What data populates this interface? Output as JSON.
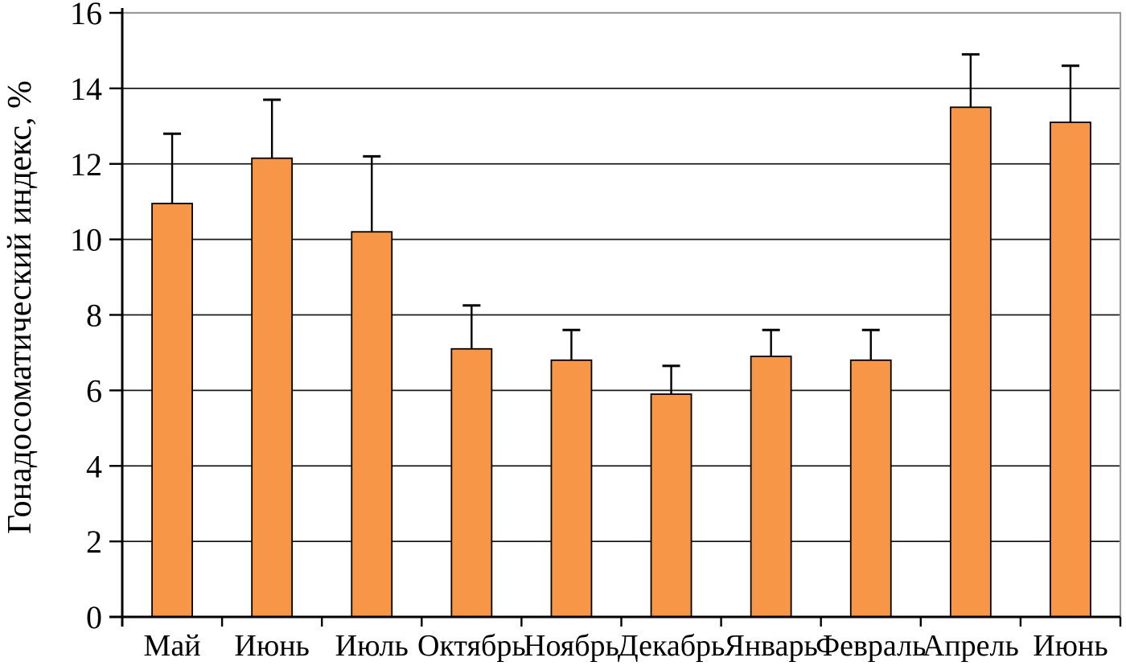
{
  "chart_data": {
    "type": "bar",
    "title": "",
    "xlabel": "",
    "ylabel": "Гонадосоматический индекс, %",
    "categories": [
      "Май",
      "Июнь",
      "Июль",
      "Октябрь",
      "Ноябрь",
      "Декабрь",
      "Январь",
      "Февраль",
      "Апрель",
      "Июнь"
    ],
    "values": [
      10.95,
      12.15,
      10.2,
      7.1,
      6.8,
      5.9,
      6.9,
      6.8,
      13.5,
      13.1
    ],
    "error_upper": [
      1.85,
      1.55,
      2.0,
      1.15,
      0.8,
      0.75,
      0.7,
      0.8,
      1.4,
      1.5
    ],
    "ylim": [
      0,
      16
    ],
    "yticks": [
      0,
      2,
      4,
      6,
      8,
      10,
      12,
      14,
      16
    ],
    "grid": true,
    "legend": false,
    "bar_color": "#F79646",
    "bar_border_color": "#000000",
    "gridline_color": "#1a1a1a",
    "axis_color": "#000000",
    "plot_border_color": "#9b9b9b"
  }
}
